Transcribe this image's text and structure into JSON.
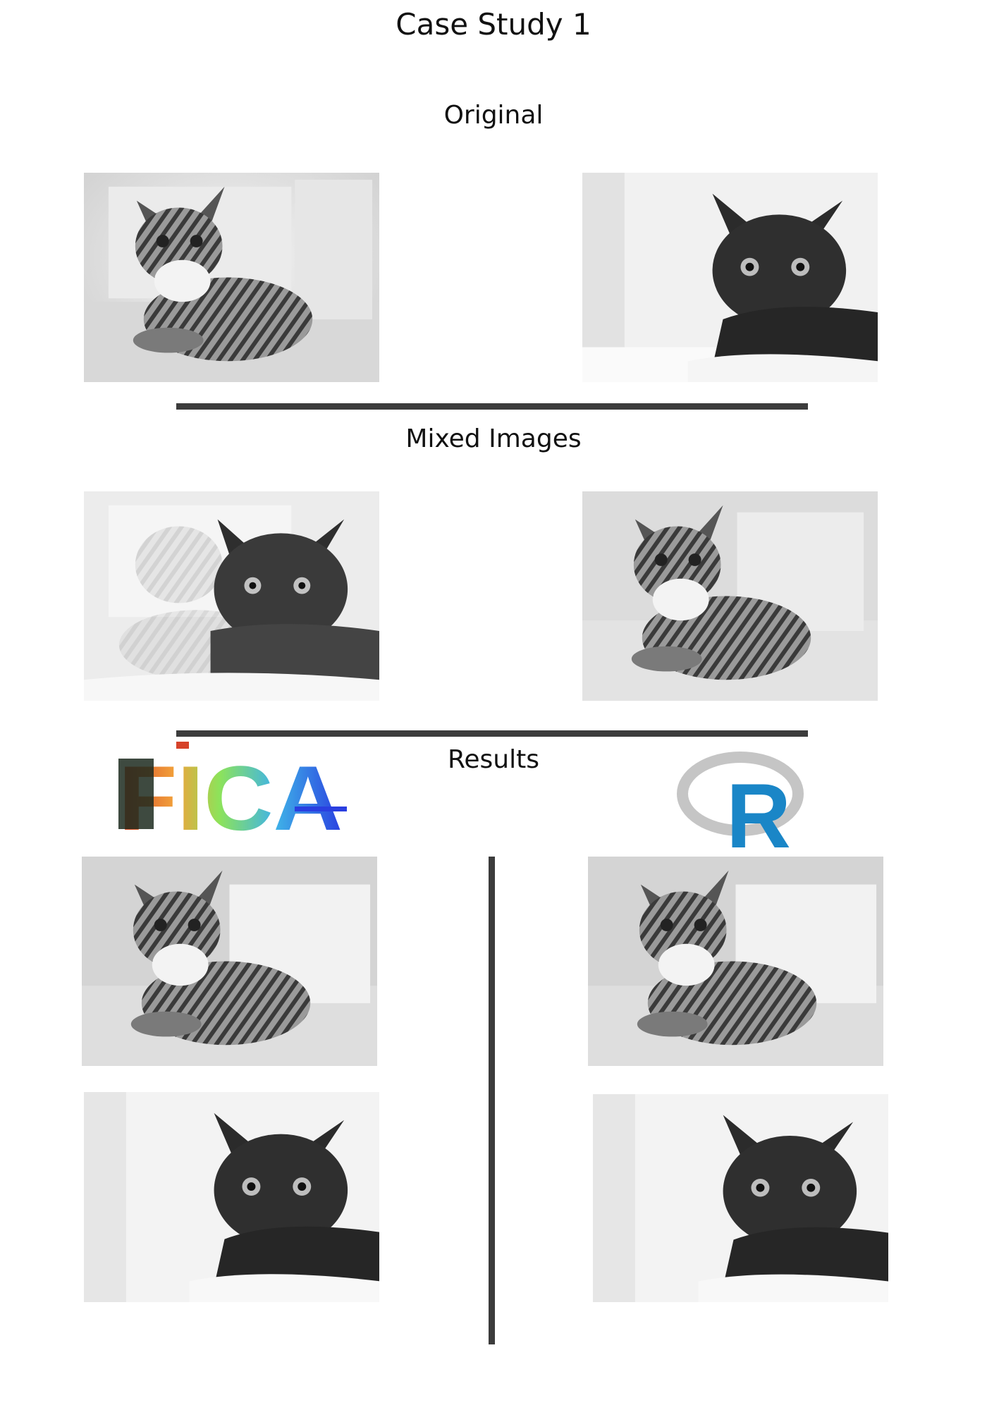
{
  "page": {
    "title": "Case Study 1"
  },
  "sections": {
    "original": "Original",
    "mixed": "Mixed Images",
    "results": "Results"
  },
  "logos": {
    "fica": "FICA",
    "r": "R"
  },
  "images": {
    "original_1": "tabby cat (grayscale)",
    "original_2": "black cat (grayscale)",
    "mixed_1": "mixed image: faint tabby with black cat",
    "mixed_2": "mixed image: tabby with faint overlay",
    "fica_result_1": "recovered tabby cat",
    "fica_result_2": "recovered black cat",
    "r_result_1": "recovered tabby cat",
    "r_result_2": "recovered black cat"
  }
}
